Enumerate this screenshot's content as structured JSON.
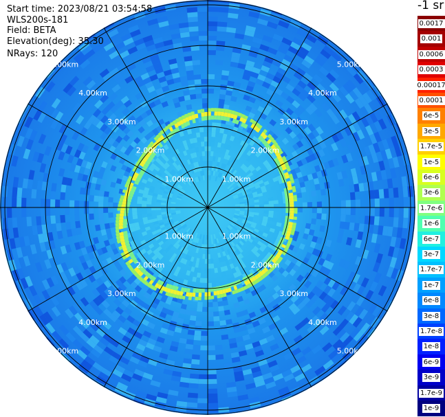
{
  "header": {
    "start_time": "Start time: 2023/08/21 03:54:58",
    "instrument": "WLS200s-181",
    "field": "Field: BETA",
    "elevation": "Elevation(deg): 35.30",
    "nrays": "NRays: 120"
  },
  "units_title": "-1 sr",
  "colorbar": [
    {
      "label": "0.0017",
      "color": "#8b0000"
    },
    {
      "label": "0.001",
      "color": "#a40000"
    },
    {
      "label": "0.0006",
      "color": "#c00000"
    },
    {
      "label": "0.0003",
      "color": "#e00000"
    },
    {
      "label": "0.00017",
      "color": "#ff2000"
    },
    {
      "label": "0.0001",
      "color": "#ff5000"
    },
    {
      "label": "6e-5",
      "color": "#ff8000"
    },
    {
      "label": "3e-5",
      "color": "#ffa800"
    },
    {
      "label": "1.7e-5",
      "color": "#ffd000"
    },
    {
      "label": "1e-5",
      "color": "#ffff00"
    },
    {
      "label": "6e-6",
      "color": "#d8ff20"
    },
    {
      "label": "3e-6",
      "color": "#b0ff50"
    },
    {
      "label": "1.7e-6",
      "color": "#80ff80"
    },
    {
      "label": "1e-6",
      "color": "#50ffb0"
    },
    {
      "label": "6e-7",
      "color": "#20f0e0"
    },
    {
      "label": "3e-7",
      "color": "#00d8ff"
    },
    {
      "label": "1.7e-7",
      "color": "#00c0ff"
    },
    {
      "label": "1e-7",
      "color": "#00a0ff"
    },
    {
      "label": "6e-8",
      "color": "#0088ff"
    },
    {
      "label": "3e-8",
      "color": "#0068ff"
    },
    {
      "label": "1.7e-8",
      "color": "#0040ff"
    },
    {
      "label": "1e-8",
      "color": "#0020ff"
    },
    {
      "label": "6e-9",
      "color": "#0000f0"
    },
    {
      "label": "3e-9",
      "color": "#0000c8"
    },
    {
      "label": "1.7e-9",
      "color": "#0000a0"
    },
    {
      "label": "1e-9",
      "color": "#000080"
    }
  ],
  "range_rings": [
    {
      "label": "1.00km"
    },
    {
      "label": "2.00km"
    },
    {
      "label": "3.00km"
    },
    {
      "label": "4.00km"
    },
    {
      "label": "5.00km"
    }
  ],
  "colors": {
    "background_field": "#1d8cf0",
    "ring_yellow": "#f2f230",
    "grid": "#000000"
  }
}
